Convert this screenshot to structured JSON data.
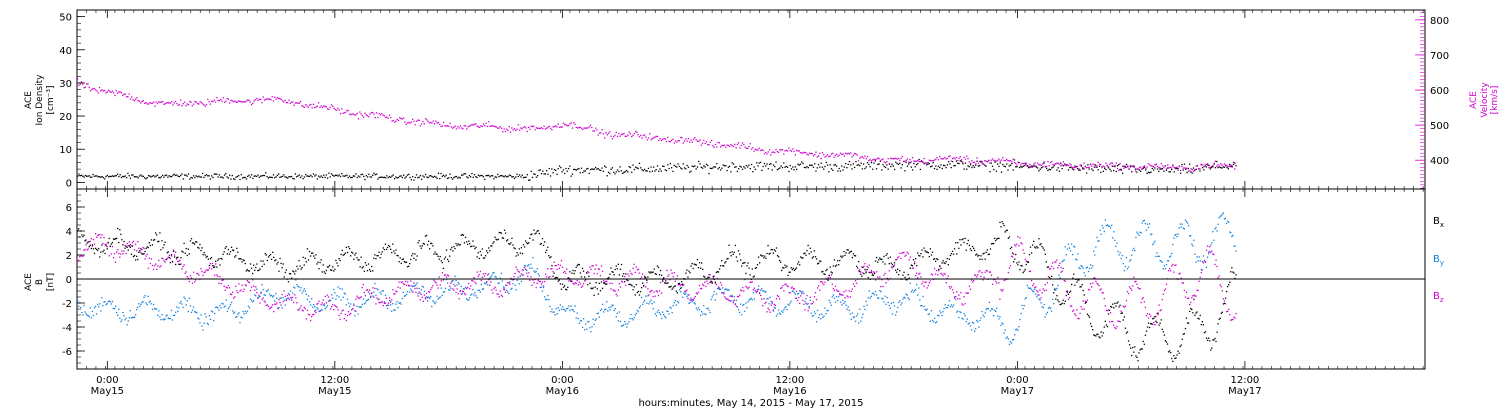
{
  "chart_data": [
    {
      "type": "scatter",
      "panel": "top",
      "left_axis": {
        "label_lines": [
          "ACE",
          "Ion Density",
          "[cm⁻³]"
        ],
        "ticks": [
          0,
          10,
          20,
          30,
          40,
          50
        ],
        "tick_labels": [
          "0",
          "10",
          "20",
          "30",
          "40",
          "50"
        ],
        "ylim": [
          -2,
          52
        ]
      },
      "right_axis": {
        "label_lines": [
          "ACE",
          "Velocity",
          "[km/s]"
        ],
        "ticks": [
          400,
          500,
          600,
          700,
          800
        ],
        "tick_labels": [
          "400",
          "500",
          "600",
          "700",
          "800"
        ],
        "ylim": [
          318,
          828
        ],
        "color": "#d000d0"
      },
      "series": [
        {
          "axis": "left",
          "color": "#000000",
          "x_hours": [
            -1.6,
            0,
            3,
            6,
            9,
            12,
            15,
            18,
            20,
            22,
            24,
            27,
            30,
            33,
            36,
            39,
            42,
            45,
            48,
            51,
            54,
            57,
            59.5
          ],
          "y": [
            2,
            2,
            2,
            2,
            2,
            2,
            2,
            2,
            2,
            2,
            4,
            4,
            4.5,
            5,
            5,
            5,
            5.5,
            5.5,
            5,
            4.5,
            4,
            4,
            5.5
          ]
        },
        {
          "axis": "right",
          "color": "#d000d0",
          "x_hours": [
            -1.6,
            0,
            3,
            6,
            9,
            12,
            15,
            18,
            21,
            23,
            24,
            26,
            29,
            31,
            35,
            40,
            41,
            45,
            49,
            53,
            57,
            59.5
          ],
          "y": [
            620,
            595,
            560,
            570,
            575,
            545,
            520,
            500,
            495,
            490,
            510,
            480,
            465,
            455,
            430,
            410,
            400,
            405,
            390,
            385,
            380,
            390
          ]
        }
      ]
    },
    {
      "type": "scatter",
      "panel": "bottom",
      "left_axis": {
        "label_lines": [
          "ACE",
          "B",
          "[nT]"
        ],
        "ticks": [
          -6,
          -4,
          -2,
          0,
          2,
          4,
          6
        ],
        "tick_labels": [
          "-6",
          "-4",
          "-2",
          "0",
          "2",
          "4",
          "6"
        ],
        "ylim": [
          -7.5,
          7.5
        ]
      },
      "legend": [
        "Bx",
        "By",
        "Bz"
      ],
      "series": [
        {
          "name": "Bx",
          "color": "#000000",
          "x_hours": [
            -1.6,
            0,
            3,
            6,
            9,
            12,
            15,
            18,
            21,
            22.5,
            24,
            27,
            30,
            33,
            36,
            39,
            42,
            45,
            48,
            52,
            55,
            58,
            59.5
          ],
          "y": [
            3,
            3,
            2.5,
            2,
            1,
            1.5,
            2,
            2.5,
            3,
            3.5,
            0,
            0,
            0,
            1.5,
            1.5,
            1.5,
            1,
            2.5,
            3,
            -3,
            -5,
            -4,
            -1
          ]
        },
        {
          "name": "By",
          "color": "#1080e0",
          "x_hours": [
            -1.6,
            0,
            3,
            6,
            9,
            12,
            15,
            18,
            21,
            22.5,
            24,
            27,
            30,
            33,
            36,
            39,
            42,
            45,
            48,
            52,
            55,
            58,
            59.5
          ],
          "y": [
            -2,
            -2.5,
            -2.5,
            -3,
            -1,
            -2,
            -1.5,
            -1,
            0,
            0.5,
            -3,
            -3,
            -2,
            -1.5,
            -2,
            -2.5,
            -1.5,
            -3,
            -3.5,
            3,
            3,
            3,
            4
          ]
        },
        {
          "name": "Bz",
          "color": "#d000d0",
          "x_hours": [
            -1.6,
            0,
            3,
            6,
            9,
            12,
            15,
            18,
            21,
            22.5,
            24,
            27,
            30,
            33,
            36,
            39,
            42,
            45,
            48,
            52,
            55,
            58,
            59.5
          ],
          "y": [
            2.5,
            3,
            1.5,
            0,
            -2,
            -2.5,
            -1,
            -0.5,
            -0.3,
            0.5,
            0.5,
            0,
            -0.5,
            -1,
            -1.5,
            -0.5,
            1.5,
            -1,
            1.5,
            -2,
            -2,
            1,
            -2
          ]
        }
      ],
      "zero_line": 0
    }
  ],
  "x_axis": {
    "xlim_hours": [
      -1.6,
      69.5
    ],
    "ticks_hours": [
      0,
      12,
      24,
      36,
      48,
      60
    ],
    "tick_labels_time": [
      "0:00",
      "12:00",
      "0:00",
      "12:00",
      "0:00",
      "12:00"
    ],
    "tick_labels_date": [
      "May15",
      "May15",
      "May16",
      "May16",
      "May17",
      "May17"
    ],
    "minor_step_hours": 0.5,
    "title": "hours:minutes, May 14, 2015 - May 17, 2015"
  },
  "colors": {
    "black": "#000000",
    "magenta": "#d000d0",
    "blue": "#1080e0"
  },
  "legend_labels": {
    "bx": "B",
    "bx_sub": "x",
    "by": "B",
    "by_sub": "y",
    "bz": "B",
    "bz_sub": "z"
  }
}
